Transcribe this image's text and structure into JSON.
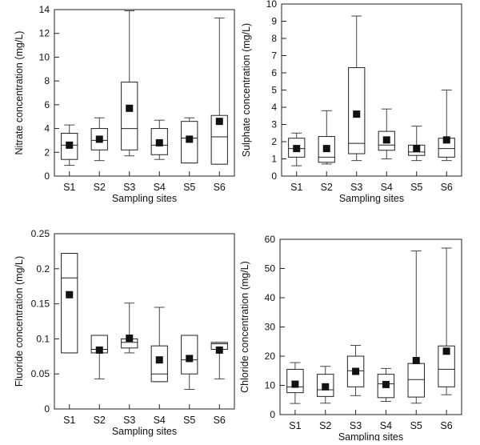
{
  "chart_data": [
    {
      "type": "boxplot",
      "xlabel": "Sampling sites",
      "ylabel": "Nitrate concentration (mg/L)",
      "ylim": [
        0,
        14
      ],
      "yticks": [
        0,
        2,
        4,
        6,
        8,
        10,
        12,
        14
      ],
      "ytick_labels": [
        "0",
        "2",
        "4",
        "6",
        "8",
        "10",
        "12",
        "14"
      ],
      "categories": [
        "S1",
        "S2",
        "S3",
        "S4",
        "S5",
        "S6"
      ],
      "boxes": [
        {
          "min": 0.9,
          "q1": 1.4,
          "median": 2.6,
          "q3": 3.6,
          "max": 4.3,
          "mean": 2.6
        },
        {
          "min": 1.3,
          "q1": 2.2,
          "median": 3.0,
          "q3": 4.0,
          "max": 4.9,
          "mean": 3.1
        },
        {
          "min": 1.7,
          "q1": 2.2,
          "median": 4.0,
          "q3": 7.9,
          "max": 13.9,
          "mean": 5.7
        },
        {
          "min": 1.4,
          "q1": 1.8,
          "median": 2.6,
          "q3": 4.0,
          "max": 4.7,
          "mean": 2.8
        },
        {
          "min": 1.1,
          "q1": 1.1,
          "median": 3.2,
          "q3": 4.6,
          "max": 4.9,
          "mean": 3.1
        },
        {
          "min": 1.0,
          "q1": 1.0,
          "median": 3.3,
          "q3": 5.1,
          "max": 13.3,
          "mean": 4.6
        }
      ]
    },
    {
      "type": "boxplot",
      "xlabel": "Sampling sites",
      "ylabel": "Sulphate concentration (mg/L)",
      "ylim": [
        0,
        10
      ],
      "yticks": [
        0,
        1,
        2,
        3,
        4,
        5,
        6,
        7,
        8,
        9,
        10
      ],
      "ytick_labels": [
        "0",
        "1",
        "2",
        "3",
        "4",
        "5",
        "6",
        "7",
        "8",
        "9",
        "10"
      ],
      "categories": [
        "S1",
        "S2",
        "S3",
        "S4",
        "S5",
        "S6"
      ],
      "boxes": [
        {
          "min": 0.6,
          "q1": 1.1,
          "median": 1.6,
          "q3": 2.2,
          "max": 2.5,
          "mean": 1.6
        },
        {
          "min": 0.7,
          "q1": 0.8,
          "median": 1.1,
          "q3": 2.3,
          "max": 3.8,
          "mean": 1.6
        },
        {
          "min": 0.9,
          "q1": 1.3,
          "median": 1.9,
          "q3": 6.3,
          "max": 9.3,
          "mean": 3.6
        },
        {
          "min": 1.0,
          "q1": 1.5,
          "median": 1.8,
          "q3": 2.6,
          "max": 3.9,
          "mean": 2.1
        },
        {
          "min": 0.9,
          "q1": 1.2,
          "median": 1.4,
          "q3": 1.8,
          "max": 2.9,
          "mean": 1.6
        },
        {
          "min": 0.9,
          "q1": 1.1,
          "median": 1.6,
          "q3": 2.2,
          "max": 5.0,
          "mean": 2.1
        }
      ]
    },
    {
      "type": "boxplot",
      "xlabel": "Sampling sites",
      "ylabel": "Fluoride concentration (mg/L)",
      "ylim": [
        0,
        0.25
      ],
      "yticks": [
        0,
        0.05,
        0.1,
        0.15,
        0.2,
        0.25
      ],
      "ytick_labels": [
        "0",
        "0.05",
        "0.1",
        "0.15",
        "0.2",
        "0.25"
      ],
      "categories": [
        "S1",
        "S2",
        "S3",
        "S4",
        "S5",
        "S6"
      ],
      "boxes": [
        {
          "min": 0.08,
          "q1": 0.08,
          "median": 0.187,
          "q3": 0.222,
          "max": 0.222,
          "mean": 0.163
        },
        {
          "min": 0.043,
          "q1": 0.08,
          "median": 0.085,
          "q3": 0.105,
          "max": 0.105,
          "mean": 0.084
        },
        {
          "min": 0.08,
          "q1": 0.087,
          "median": 0.095,
          "q3": 0.1,
          "max": 0.151,
          "mean": 0.101
        },
        {
          "min": 0.039,
          "q1": 0.039,
          "median": 0.05,
          "q3": 0.09,
          "max": 0.145,
          "mean": 0.07
        },
        {
          "min": 0.028,
          "q1": 0.05,
          "median": 0.07,
          "q3": 0.105,
          "max": 0.105,
          "mean": 0.072
        },
        {
          "min": 0.043,
          "q1": 0.085,
          "median": 0.093,
          "q3": 0.095,
          "max": 0.095,
          "mean": 0.084
        }
      ]
    },
    {
      "type": "boxplot",
      "xlabel": "Sampling sites",
      "ylabel": "Chloride concentration (mg/L)",
      "ylim": [
        0,
        60
      ],
      "yticks": [
        0,
        10,
        20,
        30,
        40,
        50,
        60
      ],
      "ytick_labels": [
        "0",
        "10",
        "20",
        "30",
        "40",
        "50",
        "60"
      ],
      "categories": [
        "S1",
        "S2",
        "S3",
        "S4",
        "S5",
        "S6"
      ],
      "boxes": [
        {
          "min": 3.8,
          "q1": 7.5,
          "median": 9.5,
          "q3": 15.5,
          "max": 17.8,
          "mean": 10.4
        },
        {
          "min": 3.9,
          "q1": 6.2,
          "median": 8.5,
          "q3": 13.8,
          "max": 16.5,
          "mean": 9.5
        },
        {
          "min": 6.5,
          "q1": 9.5,
          "median": 15.0,
          "q3": 20.0,
          "max": 23.7,
          "mean": 14.8
        },
        {
          "min": 4.5,
          "q1": 5.8,
          "median": 10.5,
          "q3": 13.8,
          "max": 15.8,
          "mean": 10.3
        },
        {
          "min": 3.9,
          "q1": 6.0,
          "median": 12.0,
          "q3": 17.5,
          "max": 56.0,
          "mean": 18.5
        },
        {
          "min": 6.8,
          "q1": 9.5,
          "median": 15.5,
          "q3": 23.5,
          "max": 57.0,
          "mean": 21.7
        }
      ]
    }
  ]
}
